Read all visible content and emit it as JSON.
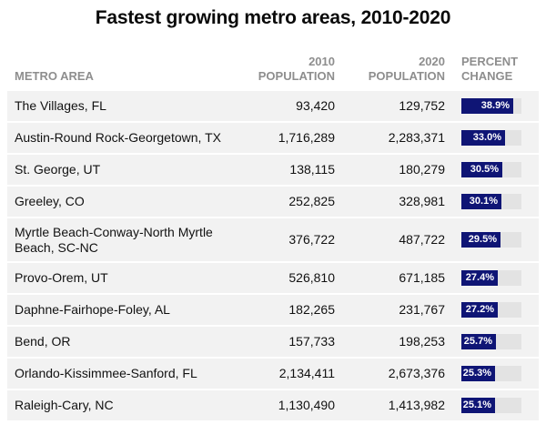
{
  "chart_data": {
    "type": "table",
    "title": "Fastest growing metro areas, 2010-2020",
    "columns": [
      "METRO AREA",
      "2010 POPULATION",
      "2020 POPULATION",
      "PERCENT CHANGE"
    ],
    "rows": [
      {
        "metro": "The Villages, FL",
        "pop2010": "93,420",
        "pop2020": "129,752",
        "pct": "38.9%",
        "pct_value": 38.9
      },
      {
        "metro": "Austin-Round Rock-Georgetown, TX",
        "pop2010": "1,716,289",
        "pop2020": "2,283,371",
        "pct": "33.0%",
        "pct_value": 33.0
      },
      {
        "metro": "St. George, UT",
        "pop2010": "138,115",
        "pop2020": "180,279",
        "pct": "30.5%",
        "pct_value": 30.5
      },
      {
        "metro": "Greeley, CO",
        "pop2010": "252,825",
        "pop2020": "328,981",
        "pct": "30.1%",
        "pct_value": 30.1
      },
      {
        "metro": "Myrtle Beach-Conway-North Myrtle Beach, SC-NC",
        "pop2010": "376,722",
        "pop2020": "487,722",
        "pct": "29.5%",
        "pct_value": 29.5
      },
      {
        "metro": "Provo-Orem, UT",
        "pop2010": "526,810",
        "pop2020": "671,185",
        "pct": "27.4%",
        "pct_value": 27.4
      },
      {
        "metro": "Daphne-Fairhope-Foley, AL",
        "pop2010": "182,265",
        "pop2020": "231,767",
        "pct": "27.2%",
        "pct_value": 27.2
      },
      {
        "metro": "Bend, OR",
        "pop2010": "157,733",
        "pop2020": "198,253",
        "pct": "25.7%",
        "pct_value": 25.7
      },
      {
        "metro": "Orlando-Kissimmee-Sanford, FL",
        "pop2010": "2,134,411",
        "pop2020": "2,673,376",
        "pct": "25.3%",
        "pct_value": 25.3
      },
      {
        "metro": "Raleigh-Cary, NC",
        "pop2010": "1,130,490",
        "pop2020": "1,413,982",
        "pct": "25.1%",
        "pct_value": 25.1
      }
    ],
    "bar_scale_max": 45,
    "colors": {
      "bar": "#0f1575",
      "bar_track": "#e3e3e3",
      "row_background": "#f2f2f2",
      "header_text": "#8e8e8e"
    }
  }
}
